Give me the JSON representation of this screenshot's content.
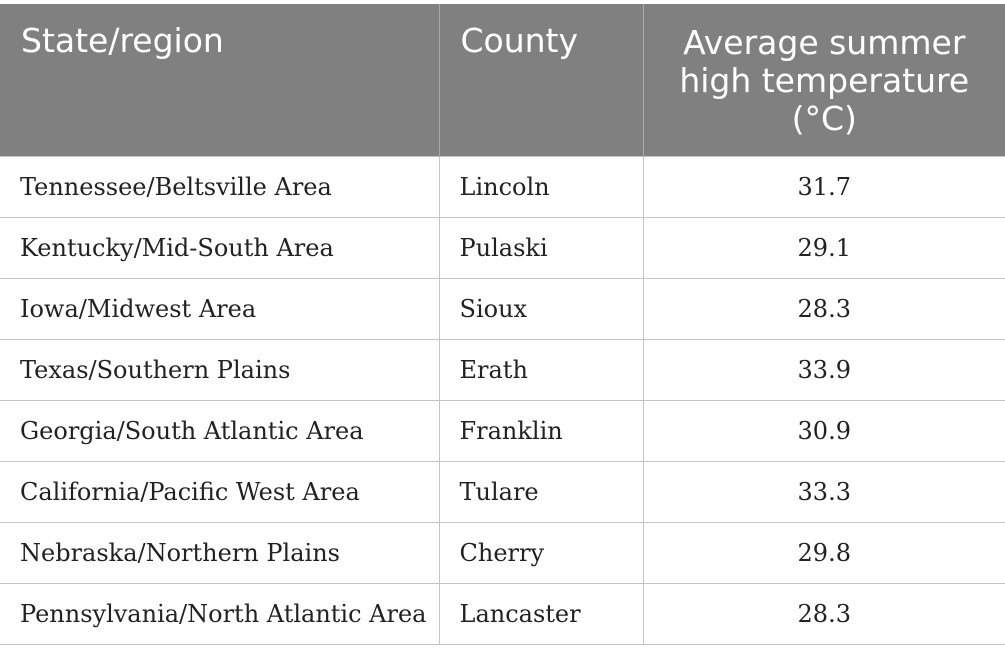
{
  "table": {
    "headers": {
      "region": "State/region",
      "county": "County",
      "temp_line1": "Average summer",
      "temp_line2": "high temperature",
      "temp_line3": "(°C)"
    },
    "rows": [
      {
        "region": "Tennessee/Beltsville Area",
        "county": "Lincoln",
        "temp": "31.7"
      },
      {
        "region": "Kentucky/Mid-South Area",
        "county": "Pulaski",
        "temp": "29.1"
      },
      {
        "region": "Iowa/Midwest Area",
        "county": "Sioux",
        "temp": "28.3"
      },
      {
        "region": "Texas/Southern Plains",
        "county": "Erath",
        "temp": "33.9"
      },
      {
        "region": "Georgia/South Atlantic Area",
        "county": "Franklin",
        "temp": "30.9"
      },
      {
        "region": "California/Pacific West Area",
        "county": "Tulare",
        "temp": "33.3"
      },
      {
        "region": "Nebraska/Northern Plains",
        "county": "Cherry",
        "temp": "29.8"
      },
      {
        "region": "Pennsylvania/North Atlantic Area",
        "county": "Lancaster",
        "temp": "28.3"
      }
    ]
  }
}
